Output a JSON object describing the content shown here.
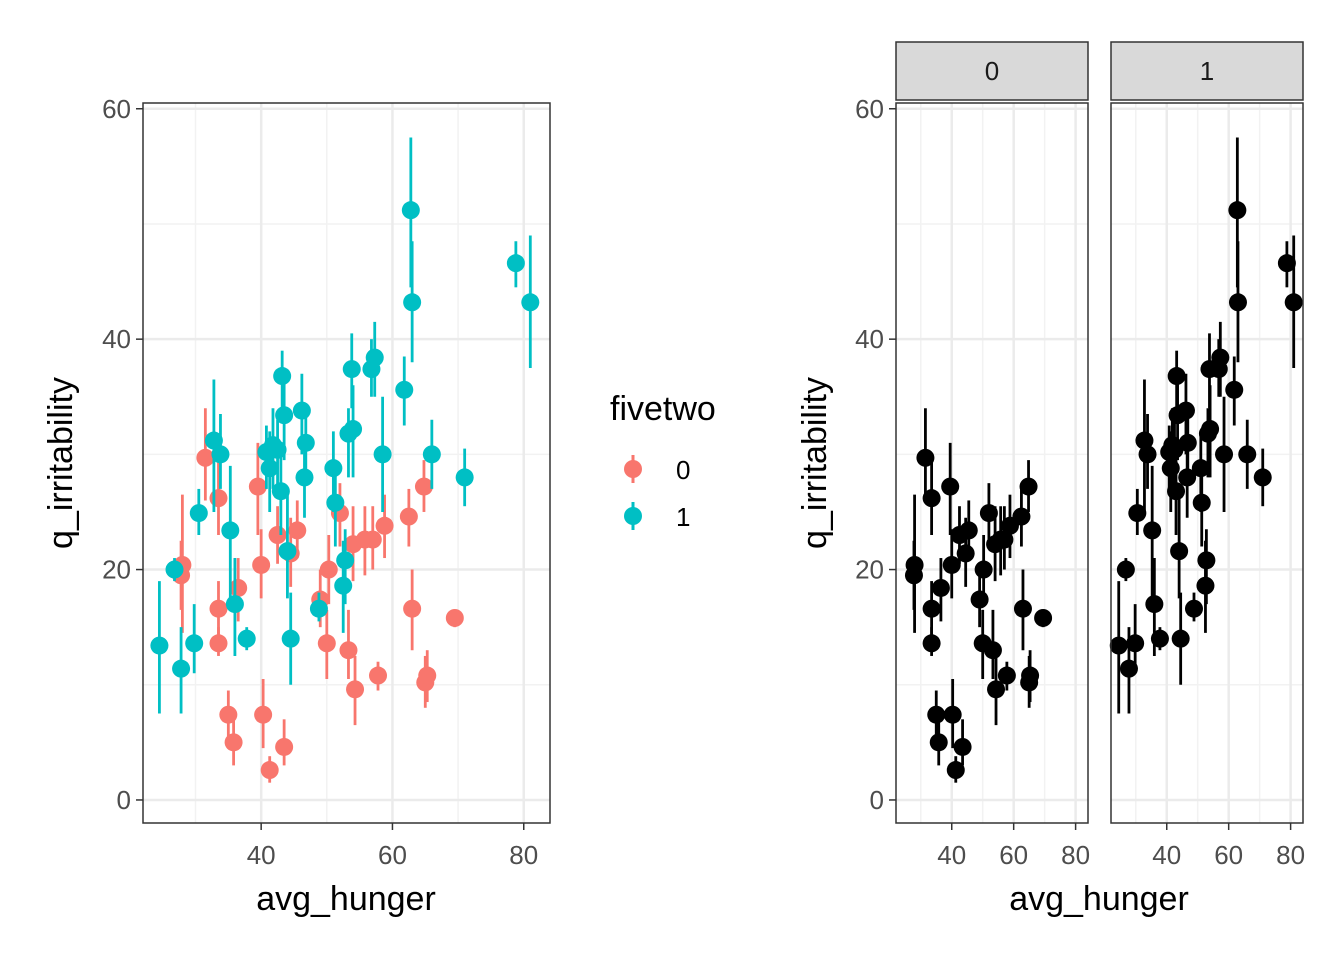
{
  "chart_data": [
    {
      "type": "scatter",
      "subtype": "pointrange",
      "panel": "combined",
      "xlabel": "avg_hunger",
      "ylabel": "q_irritability",
      "xlim": [
        22,
        84
      ],
      "ylim": [
        -2,
        60.5
      ],
      "x_ticks": [
        40,
        60,
        80
      ],
      "y_ticks": [
        0,
        20,
        40,
        60
      ],
      "x_tick_labels": [
        "40",
        "60",
        "80"
      ],
      "y_tick_labels": [
        "0",
        "20",
        "40",
        "60"
      ],
      "grid": true,
      "legend": {
        "title": "fivetwo",
        "position": "right",
        "entries": [
          {
            "label": "0",
            "color": "#F8766D"
          },
          {
            "label": "1",
            "color": "#00BFC4"
          }
        ]
      },
      "series": [
        {
          "group": "0",
          "color": "#F8766D",
          "points": [
            {
              "x": 28,
              "y": 20.4,
              "lo": 14.5,
              "hi": 26.5
            },
            {
              "x": 27.8,
              "y": 19.5,
              "lo": 16.5,
              "hi": 22.5
            },
            {
              "x": 31.5,
              "y": 29.7,
              "lo": 26,
              "hi": 34
            },
            {
              "x": 33.5,
              "y": 26.2,
              "lo": 23,
              "hi": 29.5
            },
            {
              "x": 33.5,
              "y": 16.6,
              "lo": 13.5,
              "hi": 19
            },
            {
              "x": 33.5,
              "y": 13.6,
              "lo": 12.5,
              "hi": 15
            },
            {
              "x": 35,
              "y": 7.4,
              "lo": 5.5,
              "hi": 9.5
            },
            {
              "x": 35.8,
              "y": 5,
              "lo": 3,
              "hi": 7
            },
            {
              "x": 36.5,
              "y": 18.4,
              "lo": 15.5,
              "hi": 21
            },
            {
              "x": 39.5,
              "y": 27.2,
              "lo": 23,
              "hi": 31
            },
            {
              "x": 40,
              "y": 20.4,
              "lo": 17.5,
              "hi": 23.5
            },
            {
              "x": 40.3,
              "y": 7.4,
              "lo": 4.5,
              "hi": 10.5
            },
            {
              "x": 41.3,
              "y": 2.6,
              "lo": 1.5,
              "hi": 3.8
            },
            {
              "x": 42.5,
              "y": 23,
              "lo": 20.5,
              "hi": 25.5
            },
            {
              "x": 43.5,
              "y": 4.6,
              "lo": 3,
              "hi": 7
            },
            {
              "x": 44.5,
              "y": 21.4,
              "lo": 18.5,
              "hi": 24.5
            },
            {
              "x": 45.5,
              "y": 23.4,
              "lo": 21,
              "hi": 26
            },
            {
              "x": 49,
              "y": 17.4,
              "lo": 15,
              "hi": 20
            },
            {
              "x": 50,
              "y": 13.6,
              "lo": 10.5,
              "hi": 16.5
            },
            {
              "x": 50.3,
              "y": 20,
              "lo": 17,
              "hi": 23
            },
            {
              "x": 52,
              "y": 24.9,
              "lo": 22,
              "hi": 27.5
            },
            {
              "x": 53.3,
              "y": 13,
              "lo": 10.5,
              "hi": 16.5
            },
            {
              "x": 54,
              "y": 22.2,
              "lo": 19,
              "hi": 25.5
            },
            {
              "x": 54.3,
              "y": 9.6,
              "lo": 6.5,
              "hi": 12.5
            },
            {
              "x": 55.8,
              "y": 22.6,
              "lo": 19.5,
              "hi": 25.5
            },
            {
              "x": 57,
              "y": 22.6,
              "lo": 20,
              "hi": 25.5
            },
            {
              "x": 57.8,
              "y": 10.8,
              "lo": 9.5,
              "hi": 12
            },
            {
              "x": 58.8,
              "y": 23.8,
              "lo": 21,
              "hi": 26.5
            },
            {
              "x": 62.5,
              "y": 24.6,
              "lo": 22,
              "hi": 27
            },
            {
              "x": 63,
              "y": 16.6,
              "lo": 13,
              "hi": 20
            },
            {
              "x": 64.8,
              "y": 27.2,
              "lo": 25,
              "hi": 29.5
            },
            {
              "x": 65,
              "y": 10.2,
              "lo": 8,
              "hi": 12.5
            },
            {
              "x": 65.3,
              "y": 10.8,
              "lo": 8.5,
              "hi": 13
            },
            {
              "x": 69.5,
              "y": 15.8,
              "lo": 15,
              "hi": 16.5
            }
          ]
        },
        {
          "group": "1",
          "color": "#00BFC4",
          "points": [
            {
              "x": 24.5,
              "y": 13.4,
              "lo": 7.5,
              "hi": 19
            },
            {
              "x": 26.8,
              "y": 20,
              "lo": 19,
              "hi": 21
            },
            {
              "x": 27.8,
              "y": 11.4,
              "lo": 7.5,
              "hi": 15
            },
            {
              "x": 29.8,
              "y": 13.6,
              "lo": 11,
              "hi": 17
            },
            {
              "x": 30.5,
              "y": 24.9,
              "lo": 23,
              "hi": 27
            },
            {
              "x": 32.8,
              "y": 31.2,
              "lo": 25,
              "hi": 36.5
            },
            {
              "x": 33.8,
              "y": 30,
              "lo": 27,
              "hi": 33.5
            },
            {
              "x": 35.3,
              "y": 23.4,
              "lo": 17.5,
              "hi": 29
            },
            {
              "x": 36,
              "y": 17,
              "lo": 12.5,
              "hi": 21
            },
            {
              "x": 37.8,
              "y": 14,
              "lo": 13,
              "hi": 15
            },
            {
              "x": 40.8,
              "y": 30.2,
              "lo": 27,
              "hi": 32.5
            },
            {
              "x": 41.3,
              "y": 28.8,
              "lo": 25,
              "hi": 32
            },
            {
              "x": 41.8,
              "y": 30.8,
              "lo": 27,
              "hi": 34
            },
            {
              "x": 42.5,
              "y": 30.4,
              "lo": 27,
              "hi": 33
            },
            {
              "x": 43,
              "y": 26.8,
              "lo": 23,
              "hi": 30.5
            },
            {
              "x": 43.2,
              "y": 36.8,
              "lo": 34,
              "hi": 39
            },
            {
              "x": 43.5,
              "y": 33.4,
              "lo": 29.5,
              "hi": 37.5
            },
            {
              "x": 44,
              "y": 21.6,
              "lo": 17.5,
              "hi": 27
            },
            {
              "x": 44.5,
              "y": 14,
              "lo": 10,
              "hi": 18
            },
            {
              "x": 46.2,
              "y": 33.8,
              "lo": 30,
              "hi": 37
            },
            {
              "x": 46.6,
              "y": 28,
              "lo": 24.5,
              "hi": 31.5
            },
            {
              "x": 46.8,
              "y": 31,
              "lo": 28,
              "hi": 34
            },
            {
              "x": 48.8,
              "y": 16.6,
              "lo": 15.5,
              "hi": 18
            },
            {
              "x": 51,
              "y": 28.8,
              "lo": 25,
              "hi": 32
            },
            {
              "x": 51.3,
              "y": 25.8,
              "lo": 22,
              "hi": 29.5
            },
            {
              "x": 52.5,
              "y": 18.6,
              "lo": 14.5,
              "hi": 22.5
            },
            {
              "x": 52.8,
              "y": 20.8,
              "lo": 17,
              "hi": 23.5
            },
            {
              "x": 53.3,
              "y": 31.8,
              "lo": 28,
              "hi": 34
            },
            {
              "x": 53.8,
              "y": 37.4,
              "lo": 34,
              "hi": 40.5
            },
            {
              "x": 54,
              "y": 32.2,
              "lo": 28,
              "hi": 36
            },
            {
              "x": 56.8,
              "y": 37.4,
              "lo": 35,
              "hi": 40
            },
            {
              "x": 57.3,
              "y": 38.4,
              "lo": 35,
              "hi": 41.5
            },
            {
              "x": 58.5,
              "y": 30,
              "lo": 25,
              "hi": 35
            },
            {
              "x": 61.8,
              "y": 35.6,
              "lo": 32.5,
              "hi": 38.5
            },
            {
              "x": 62.8,
              "y": 51.2,
              "lo": 44.5,
              "hi": 57.5
            },
            {
              "x": 63,
              "y": 43.2,
              "lo": 38,
              "hi": 48.5
            },
            {
              "x": 66,
              "y": 30,
              "lo": 27,
              "hi": 33
            },
            {
              "x": 71,
              "y": 28,
              "lo": 25.5,
              "hi": 30.5
            },
            {
              "x": 78.8,
              "y": 46.6,
              "lo": 44.5,
              "hi": 48.5
            },
            {
              "x": 81,
              "y": 43.2,
              "lo": 37.5,
              "hi": 49
            }
          ]
        }
      ]
    },
    {
      "type": "scatter",
      "subtype": "pointrange",
      "panel": "faceted",
      "facet_by": "fivetwo",
      "facets": [
        "0",
        "1"
      ],
      "xlabel": "avg_hunger",
      "ylabel": "q_irritability",
      "xlim": [
        22,
        84
      ],
      "ylim": [
        -2,
        60.5
      ],
      "x_ticks": [
        40,
        60,
        80
      ],
      "y_ticks": [
        0,
        20,
        40,
        60
      ],
      "x_tick_labels": [
        "40",
        "60",
        "80"
      ],
      "y_tick_labels": [
        "0",
        "20",
        "40",
        "60"
      ],
      "grid": true,
      "color": "#000000",
      "note": "same points as combined panel, split by fivetwo into facets 0 and 1"
    }
  ]
}
